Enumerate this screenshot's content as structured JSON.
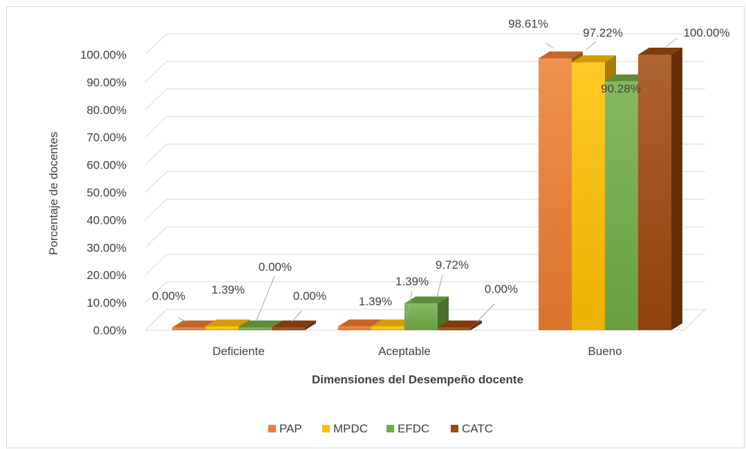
{
  "chart_data": {
    "type": "bar",
    "style": "3d-clustered-column",
    "categories": [
      "Deficiente",
      "Aceptable",
      "Bueno"
    ],
    "series": [
      {
        "name": "PAP",
        "color": "#ED7D31",
        "values": [
          0.0,
          1.39,
          98.61
        ],
        "labels": [
          "0.00%",
          "1.39%",
          "98.61%"
        ]
      },
      {
        "name": "MPDC",
        "color": "#FFC000",
        "values": [
          1.39,
          1.39,
          97.22
        ],
        "labels": [
          "1.39%",
          "1.39%",
          "97.22%"
        ]
      },
      {
        "name": "EFDC",
        "color": "#70AD47",
        "values": [
          0.0,
          9.72,
          90.28
        ],
        "labels": [
          "0.00%",
          "9.72%",
          "90.28%"
        ]
      },
      {
        "name": "CATC",
        "color": "#9E480E",
        "values": [
          0.0,
          0.0,
          100.0
        ],
        "labels": [
          "0.00%",
          "0.00%",
          "100.00%"
        ]
      }
    ],
    "title": "",
    "xlabel": "Dimensiones del Desempeño docente",
    "ylabel": "Porcentaje de docentes",
    "ylim": [
      0,
      100
    ],
    "yticks": [
      "0.00%",
      "10.00%",
      "20.00%",
      "30.00%",
      "40.00%",
      "50.00%",
      "60.00%",
      "70.00%",
      "80.00%",
      "90.00%",
      "100.00%"
    ],
    "grid": true,
    "legend_position": "bottom"
  }
}
